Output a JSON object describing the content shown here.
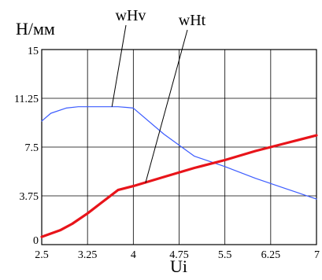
{
  "chart_data": {
    "type": "line",
    "ylabel": "Н/мм",
    "xlabel": "Ui",
    "xlim": [
      2.5,
      7
    ],
    "ylim": [
      0,
      15
    ],
    "grid": true,
    "x_ticks": [
      "2.5",
      "3.25",
      "4",
      "4.75",
      "5.5",
      "6.25",
      "7"
    ],
    "y_ticks": [
      "0",
      "3.75",
      "7.5",
      "11.25",
      "15"
    ],
    "series": [
      {
        "name": "wHv",
        "color": "#3c5cff",
        "x": [
          2.5,
          2.65,
          2.9,
          3.1,
          3.25,
          3.5,
          3.75,
          3.9,
          4.0,
          4.5,
          5.0,
          5.5,
          6.0,
          6.5,
          7.0
        ],
        "y": [
          9.5,
          10.1,
          10.5,
          10.6,
          10.6,
          10.6,
          10.6,
          10.55,
          10.5,
          8.5,
          6.8,
          6.0,
          5.1,
          4.3,
          3.5
        ]
      },
      {
        "name": "wHt",
        "color": "#e8141a",
        "x": [
          2.5,
          2.8,
          3.0,
          3.25,
          3.5,
          3.75,
          4.0,
          4.5,
          5.0,
          5.5,
          6.0,
          6.5,
          7.0
        ],
        "y": [
          0.6,
          1.1,
          1.6,
          2.4,
          3.3,
          4.2,
          4.5,
          5.2,
          5.9,
          6.5,
          7.2,
          7.8,
          8.4
        ]
      }
    ]
  }
}
